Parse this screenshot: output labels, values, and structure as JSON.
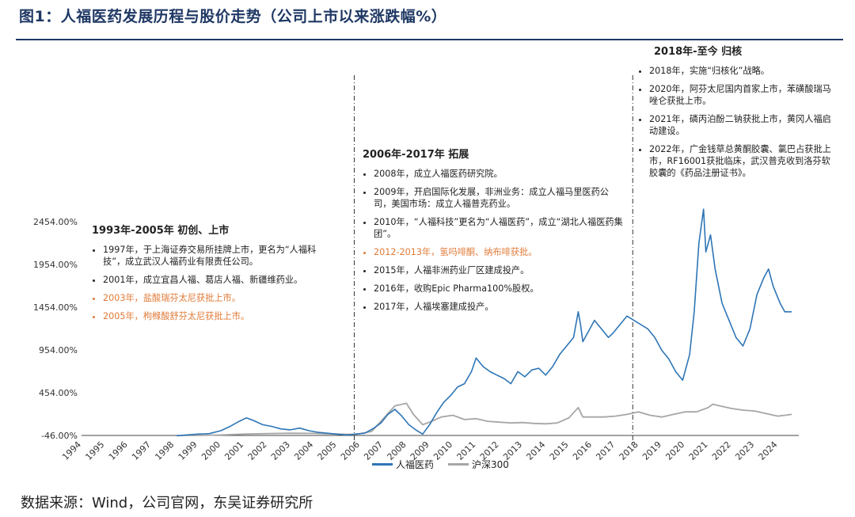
{
  "title": "图1：人福医药发展历程与股价走势（公司上市以来涨跌幅%）",
  "source": "数据来源：Wind，公司官网，东吴证券研究所",
  "colors": {
    "series_a": "#2e75b6",
    "series_b": "#a6a6a6",
    "highlight": "#e07b39",
    "title": "#1f3864"
  },
  "phases": [
    {
      "title": "1993年-2005年 初创、上市",
      "items": [
        {
          "text": "1997年，于上海证券交易所挂牌上市，更名为“人福科技”，成立武汉人福药业有限责任公司。",
          "highlight": false
        },
        {
          "text": "2001年，成立宜昌人福、葛店人福、新疆维药业。",
          "highlight": false
        },
        {
          "text": "2003年，盐酸瑞芬太尼获批上市。",
          "highlight": true
        },
        {
          "text": "2005年，枸橼酸舒芬太尼获批上市。",
          "highlight": true
        }
      ]
    },
    {
      "title": "2006年-2017年 拓展",
      "items": [
        {
          "text": "2008年，成立人福医药研究院。",
          "highlight": false
        },
        {
          "text": "2009年，开启国际化发展，非洲业务：成立人福马里医药公司，美国市场：成立人福普克药业。",
          "highlight": false
        },
        {
          "text": "2010年，“人福科技”更名为“人福医药”，成立“湖北人福医药集团”。",
          "highlight": false
        },
        {
          "text": "2012-2013年，氢吗啡酮、纳布啡获批。",
          "highlight": true
        },
        {
          "text": "2015年，人福非洲药业厂区建成投产。",
          "highlight": false
        },
        {
          "text": "2016年，收购Epic Pharma100%股权。",
          "highlight": false
        },
        {
          "text": "2017年，人福埃塞建成投产。",
          "highlight": false
        }
      ]
    },
    {
      "title": "2018年-至今 归核",
      "items": [
        {
          "text": "2018年，实施“归核化”战略。",
          "highlight": false
        },
        {
          "text": "2020年，阿芬太尼国内首家上市，苯磺酸瑞马唑仑获批上市。",
          "highlight": false
        },
        {
          "text": "2021年，磷丙泊酚二钠获批上市，黄冈人福启动建设。",
          "highlight": false
        },
        {
          "text": "2022年，广金钱草总黄酮胶囊、氯巴占获批上市，RF16001获批临床，武汉普克收到洛芬软胶囊的《药品注册证书》。",
          "highlight": false
        }
      ]
    }
  ],
  "chart_data": {
    "type": "line",
    "ylabel_ticks": [
      "-46.00%",
      "454.00%",
      "954.00%",
      "1454.00%",
      "1954.00%",
      "2454.00%"
    ],
    "ylim": [
      -46,
      2454
    ],
    "xlim": [
      1994,
      2024.7
    ],
    "x_ticks": [
      "1994",
      "1995",
      "1996",
      "1997",
      "1998",
      "1999",
      "2000",
      "2001",
      "2002",
      "2003",
      "2004",
      "2005",
      "2006",
      "2007",
      "2008",
      "2009",
      "2010",
      "2011",
      "2012",
      "2013",
      "2014",
      "2015",
      "2016",
      "2017",
      "2018",
      "2019",
      "2020",
      "2021",
      "2022",
      "2023",
      "2024"
    ],
    "phase_dividers": [
      2005.75,
      2017.75
    ],
    "series": [
      {
        "name": "人福医药",
        "x": [
          1998.1,
          1998.5,
          1999,
          1999.5,
          2000,
          2000.4,
          2000.8,
          2001.1,
          2001.4,
          2001.8,
          2002.2,
          2002.6,
          2003,
          2003.4,
          2003.8,
          2004.2,
          2004.6,
          2005,
          2005.4,
          2005.8,
          2006.2,
          2006.6,
          2006.9,
          2007.2,
          2007.5,
          2007.8,
          2008.1,
          2008.4,
          2008.7,
          2009,
          2009.3,
          2009.6,
          2009.9,
          2010.2,
          2010.5,
          2010.8,
          2011,
          2011.3,
          2011.6,
          2011.9,
          2012.2,
          2012.5,
          2012.8,
          2013.1,
          2013.4,
          2013.7,
          2014,
          2014.3,
          2014.6,
          2014.9,
          2015.2,
          2015.4,
          2015.5,
          2015.6,
          2015.8,
          2016.1,
          2016.4,
          2016.7,
          2016.9,
          2017.2,
          2017.5,
          2017.8,
          2018.1,
          2018.4,
          2018.7,
          2019,
          2019.3,
          2019.6,
          2019.9,
          2020.2,
          2020.4,
          2020.6,
          2020.8,
          2020.9,
          2021.1,
          2021.3,
          2021.6,
          2021.9,
          2022.2,
          2022.5,
          2022.8,
          2023.1,
          2023.4,
          2023.6,
          2023.8,
          2024.1,
          2024.3,
          2024.6
        ],
        "values": [
          -50,
          -40,
          -30,
          -25,
          10,
          60,
          120,
          160,
          130,
          80,
          60,
          30,
          20,
          40,
          10,
          -10,
          -20,
          -30,
          -40,
          -30,
          -20,
          40,
          100,
          200,
          260,
          180,
          80,
          20,
          -30,
          80,
          220,
          340,
          420,
          520,
          560,
          700,
          860,
          760,
          700,
          660,
          620,
          560,
          700,
          640,
          720,
          740,
          660,
          760,
          900,
          1000,
          1100,
          1400,
          1250,
          1050,
          1150,
          1300,
          1200,
          1100,
          1150,
          1250,
          1350,
          1300,
          1250,
          1200,
          1100,
          950,
          850,
          700,
          600,
          900,
          1400,
          2200,
          2600,
          2100,
          2300,
          1900,
          1500,
          1300,
          1100,
          1000,
          1200,
          1600,
          1800,
          1900,
          1700,
          1500,
          1400,
          1400
        ]
      },
      {
        "name": "沪深300",
        "x": [
          1998.1,
          1999,
          2000,
          2001,
          2002,
          2003,
          2004,
          2005,
          2005.8,
          2006.5,
          2007,
          2007.5,
          2008,
          2008.3,
          2008.7,
          2009,
          2009.5,
          2010,
          2010.5,
          2011,
          2011.5,
          2012,
          2012.5,
          2013,
          2013.5,
          2014,
          2014.5,
          2015,
          2015.4,
          2015.6,
          2016,
          2016.5,
          2017,
          2017.5,
          2018,
          2018.5,
          2019,
          2019.5,
          2020,
          2020.5,
          2021,
          2021.2,
          2021.5,
          2022,
          2022.5,
          2023,
          2023.5,
          2024,
          2024.6
        ],
        "values": [
          -46,
          -46,
          -40,
          -30,
          -25,
          -20,
          -22,
          -30,
          -35,
          0,
          150,
          300,
          330,
          200,
          80,
          110,
          170,
          190,
          140,
          150,
          120,
          110,
          100,
          105,
          95,
          90,
          100,
          160,
          280,
          170,
          170,
          170,
          180,
          200,
          230,
          190,
          170,
          200,
          230,
          230,
          280,
          320,
          300,
          270,
          250,
          240,
          210,
          180,
          200
        ]
      }
    ]
  }
}
